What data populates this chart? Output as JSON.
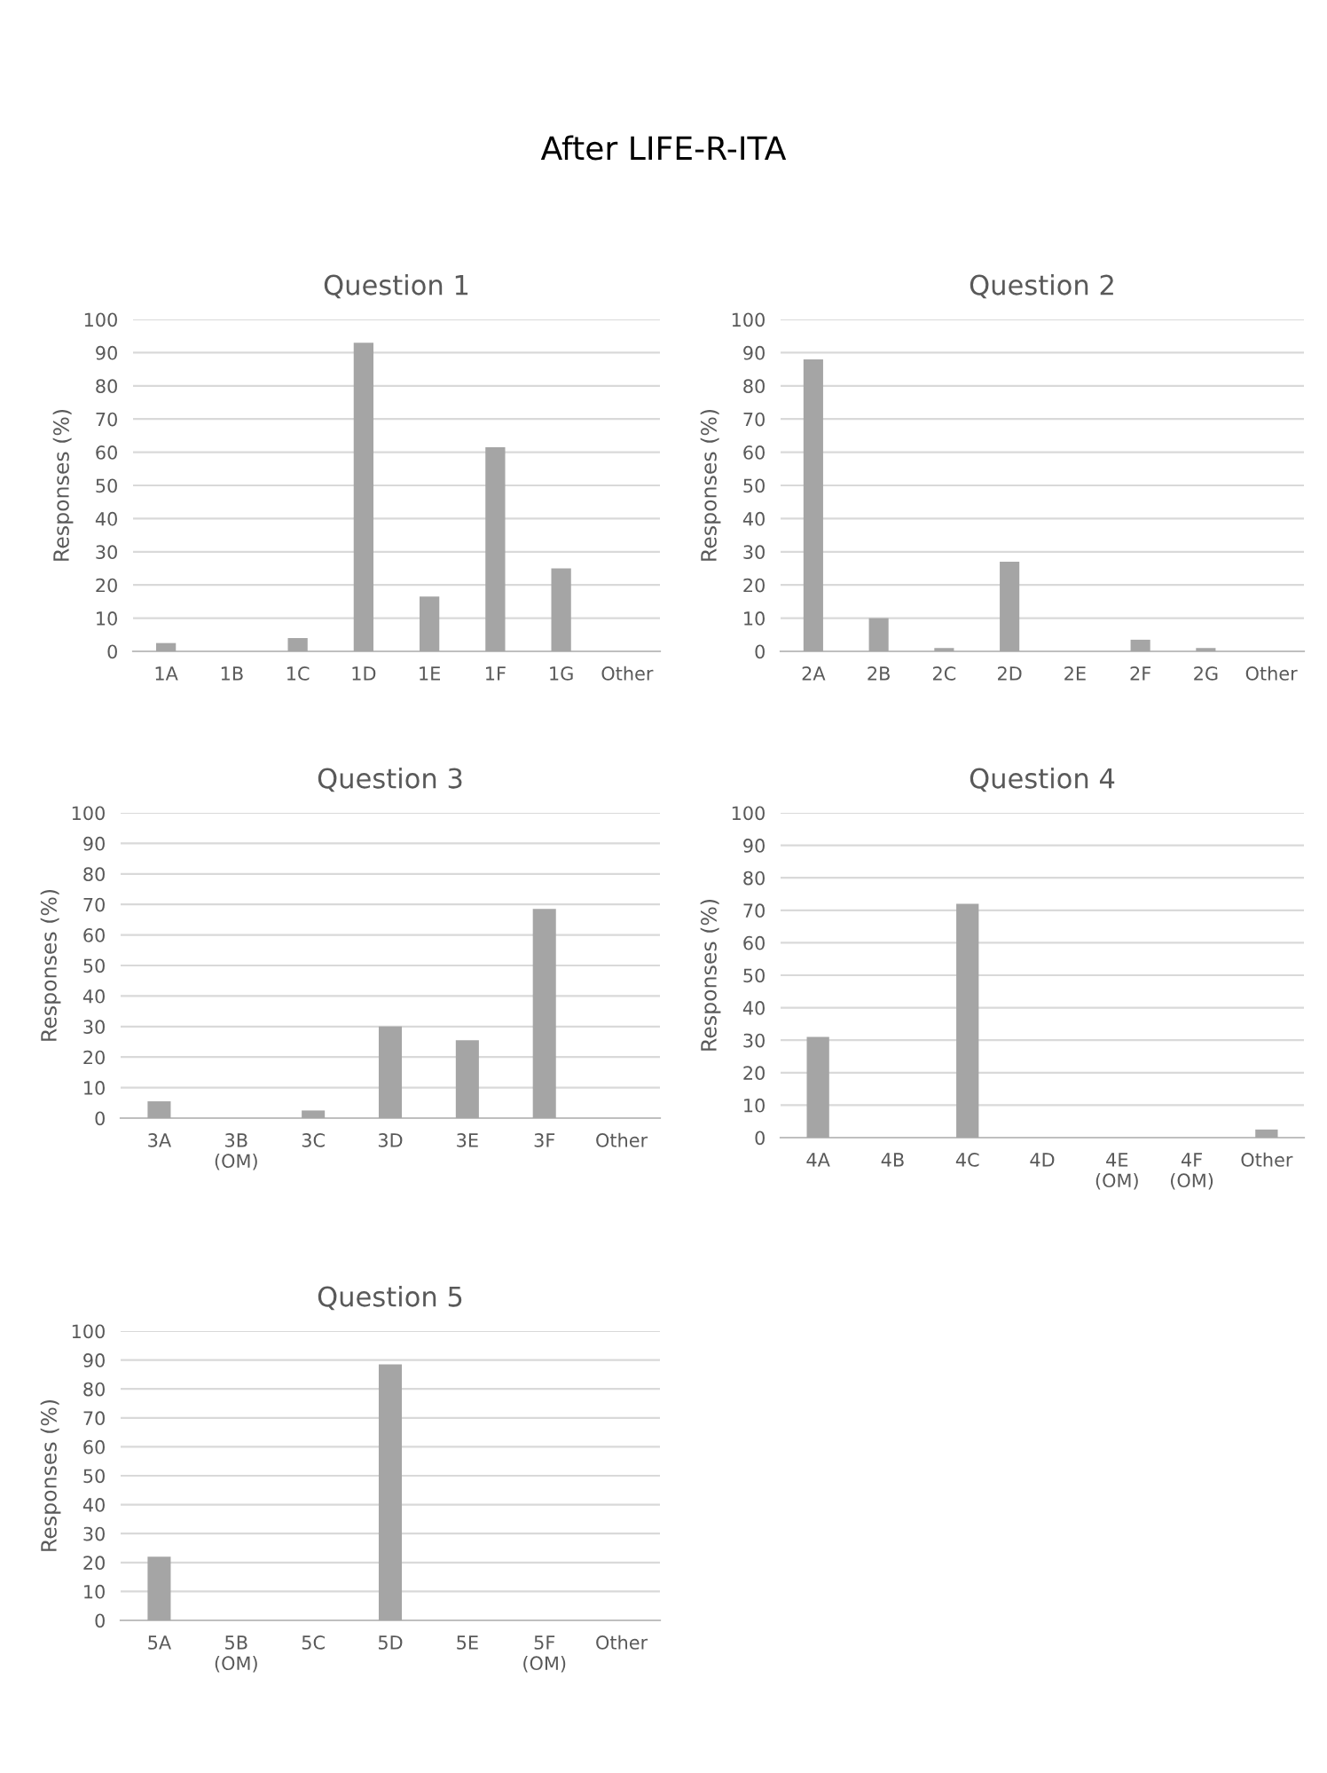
{
  "chart_data": [
    {
      "type": "bar",
      "title": "Question 1",
      "ylabel": "Responses (%)",
      "annotations": [
        "After LIFE-R-ITA"
      ],
      "categories": [
        "1A",
        "1B",
        "1C",
        "1D",
        "1E",
        "1F",
        "1G",
        "Other"
      ],
      "values": [
        2.5,
        0,
        4,
        93,
        16.5,
        61.5,
        25,
        0
      ],
      "color": "#a5a5a5",
      "ylim": [
        0,
        100
      ],
      "yticks": [
        0,
        10,
        20,
        30,
        40,
        50,
        60,
        70,
        80,
        90,
        100
      ],
      "grid": "y",
      "legend": false
    },
    {
      "type": "bar",
      "title": "Question 2",
      "ylabel": "Responses (%)",
      "categories": [
        "2A",
        "2B",
        "2C",
        "2D",
        "2E",
        "2F",
        "2G",
        "Other"
      ],
      "values": [
        88,
        10,
        1,
        27,
        0,
        3.5,
        1,
        0
      ],
      "color": "#a5a5a5",
      "ylim": [
        0,
        100
      ],
      "yticks": [
        0,
        10,
        20,
        30,
        40,
        50,
        60,
        70,
        80,
        90,
        100
      ],
      "grid": "y",
      "legend": false
    },
    {
      "type": "bar",
      "title": "Question 3",
      "ylabel": "Responses (%)",
      "categories": [
        "3A",
        "3B\n(OM)",
        "3C",
        "3D",
        "3E",
        "3F",
        "Other"
      ],
      "values": [
        5.5,
        0,
        2.5,
        30,
        25.5,
        68.5,
        0
      ],
      "color": "#a5a5a5",
      "ylim": [
        0,
        100
      ],
      "yticks": [
        0,
        10,
        20,
        30,
        40,
        50,
        60,
        70,
        80,
        90,
        100
      ],
      "grid": "y",
      "legend": false
    },
    {
      "type": "bar",
      "title": "Question 4",
      "ylabel": "Responses (%)",
      "categories": [
        "4A",
        "4B",
        "4C",
        "4D",
        "4E\n(OM)",
        "4F\n(OM)",
        "Other"
      ],
      "values": [
        31,
        0,
        72,
        0,
        0,
        0,
        2.5
      ],
      "color": "#a5a5a5",
      "ylim": [
        0,
        100
      ],
      "yticks": [
        0,
        10,
        20,
        30,
        40,
        50,
        60,
        70,
        80,
        90,
        100
      ],
      "grid": "y",
      "legend": false
    },
    {
      "type": "bar",
      "title": "Question 5",
      "ylabel": "Responses (%)",
      "categories": [
        "5A",
        "5B\n(OM)",
        "5C",
        "5D",
        "5E",
        "5F\n(OM)",
        "Other"
      ],
      "values": [
        22,
        0,
        0,
        88.5,
        0,
        0,
        0
      ],
      "color": "#a5a5a5",
      "ylim": [
        0,
        100
      ],
      "yticks": [
        0,
        10,
        20,
        30,
        40,
        50,
        60,
        70,
        80,
        90,
        100
      ],
      "grid": "y",
      "legend": false
    }
  ]
}
